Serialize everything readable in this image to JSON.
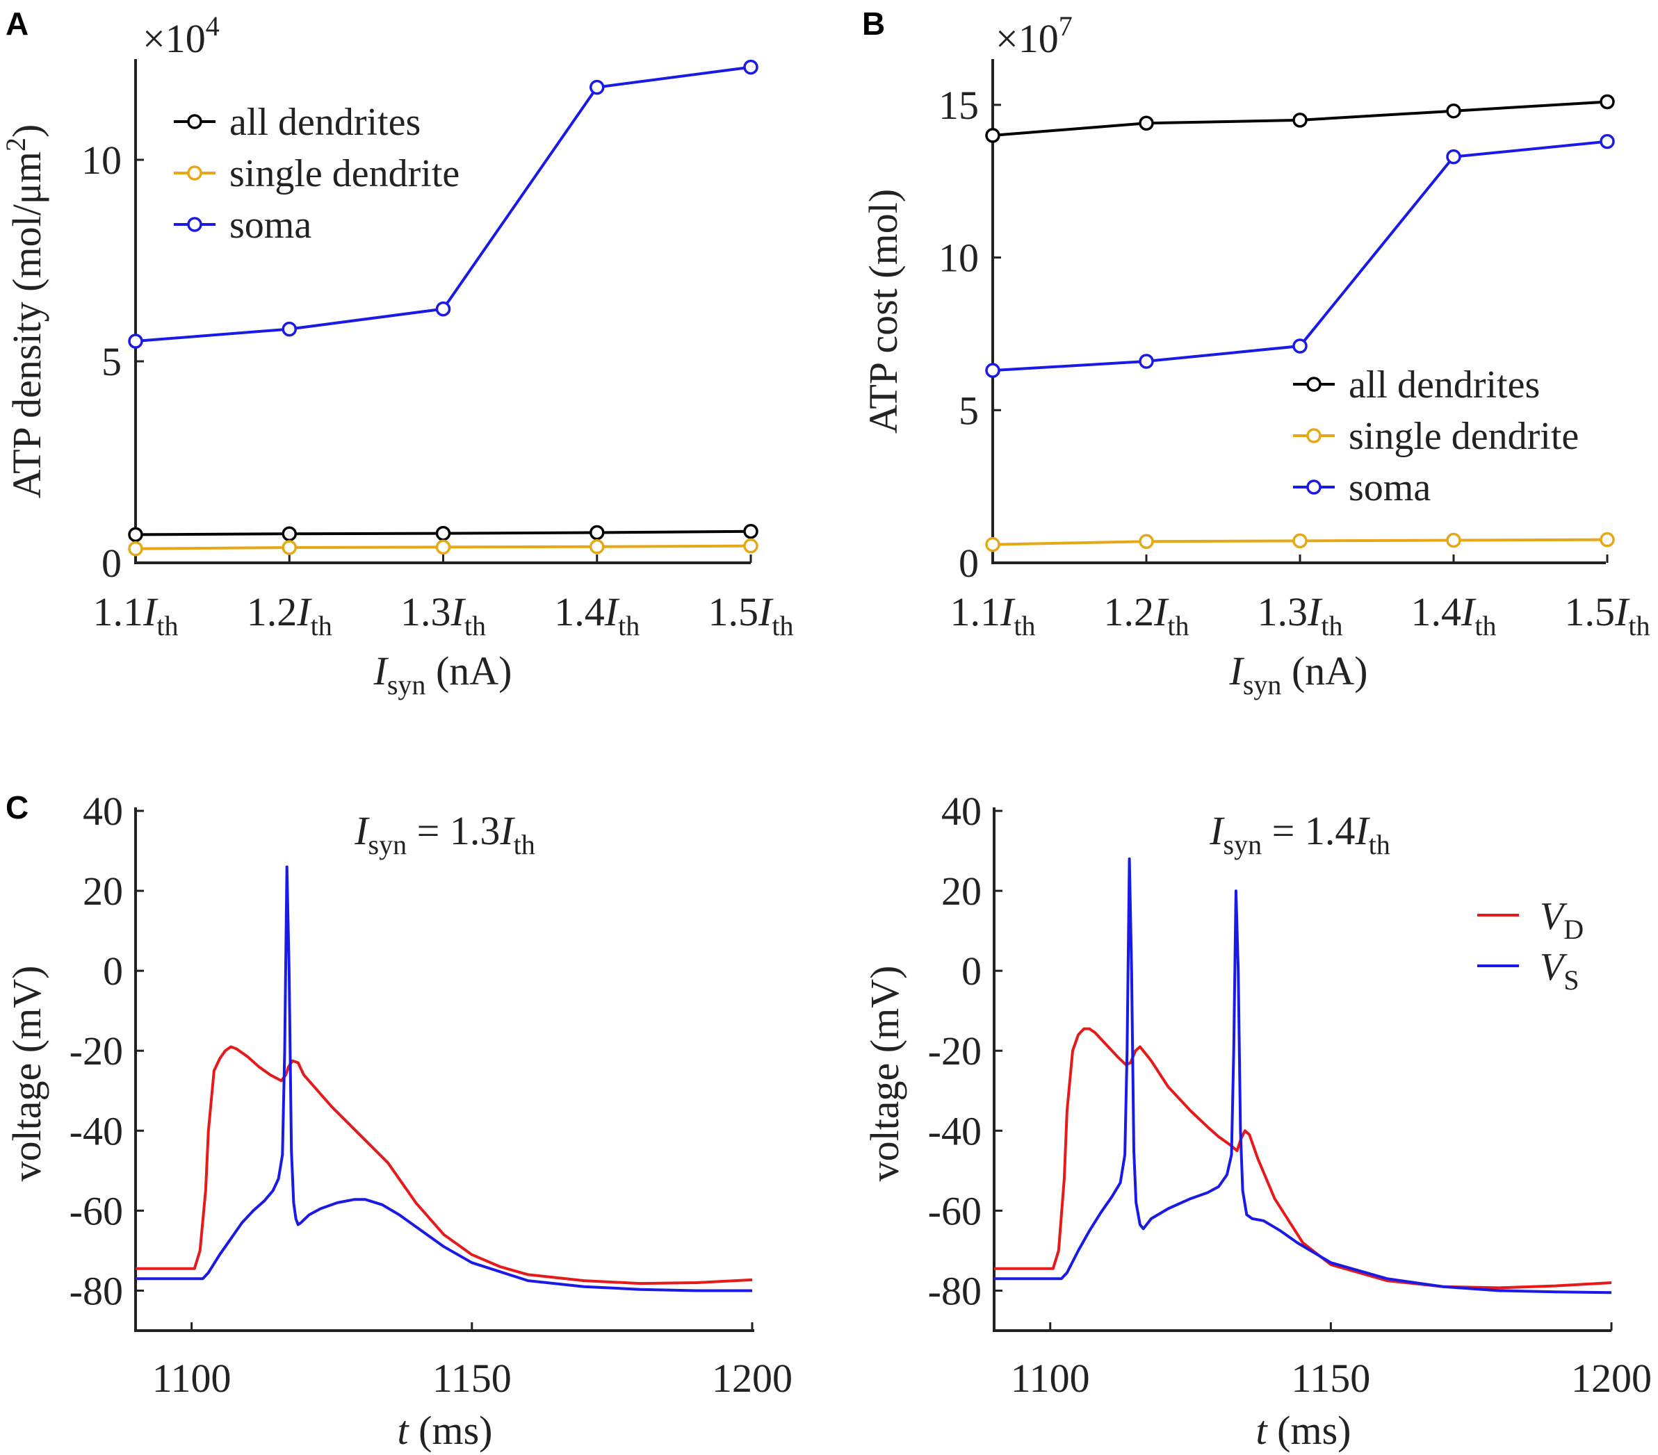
{
  "panels": {
    "a": "A",
    "b": "B",
    "c": "C"
  },
  "chart_data": [
    {
      "type": "line",
      "panel": "A",
      "multiplier": "×10",
      "exponent": "4",
      "ylabel_main": "ATP density (mol/μm",
      "ylabel_sup": "2",
      "ylabel_close": ")",
      "xlabel_var": "I",
      "xlabel_sub": "syn",
      "xlabel_unit": " (nA)",
      "ylim": [
        0,
        12.5
      ],
      "yticks": [
        "0",
        "5",
        "10"
      ],
      "categories": [
        "1.1",
        "1.2",
        "1.3",
        "1.4",
        "1.5"
      ],
      "cat_var": "I",
      "cat_sub": "th",
      "legend_position": "upper-left",
      "series": [
        {
          "name": "all dendrites",
          "color": "#000000",
          "values": [
            0.7,
            0.72,
            0.73,
            0.75,
            0.78
          ]
        },
        {
          "name": "single dendrite",
          "color": "#e6a817",
          "values": [
            0.35,
            0.38,
            0.39,
            0.4,
            0.42
          ]
        },
        {
          "name": "soma",
          "color": "#1a1ae6",
          "values": [
            5.5,
            5.8,
            6.3,
            11.8,
            12.3
          ]
        }
      ]
    },
    {
      "type": "line",
      "panel": "B",
      "multiplier": "×10",
      "exponent": "7",
      "ylabel": "ATP cost (mol)",
      "xlabel_var": "I",
      "xlabel_sub": "syn",
      "xlabel_unit": " (nA)",
      "ylim": [
        0,
        16.5
      ],
      "yticks": [
        "0",
        "5",
        "10",
        "15"
      ],
      "categories": [
        "1.1",
        "1.2",
        "1.3",
        "1.4",
        "1.5"
      ],
      "cat_var": "I",
      "cat_sub": "th",
      "legend_position": "lower-right",
      "series": [
        {
          "name": "all dendrites",
          "color": "#000000",
          "values": [
            14.0,
            14.4,
            14.5,
            14.8,
            15.1
          ]
        },
        {
          "name": "single dendrite",
          "color": "#e6a817",
          "values": [
            0.6,
            0.7,
            0.72,
            0.74,
            0.76
          ]
        },
        {
          "name": "soma",
          "color": "#1a1ae6",
          "values": [
            6.3,
            6.6,
            7.1,
            13.3,
            13.8
          ]
        }
      ]
    },
    {
      "type": "line",
      "panel": "C-left",
      "title_var": "I",
      "title_sub": "syn",
      "title_eq": " = 1.3",
      "title_var2": "I",
      "title_sub2": "th",
      "ylabel": "voltage (mV)",
      "xlabel_var": "t",
      "xlabel_unit": " (ms)",
      "xlim": [
        1090,
        1200
      ],
      "ylim": [
        -90,
        40
      ],
      "xticks": [
        "1100",
        "1150",
        "1200"
      ],
      "yticks": [
        "40",
        "20",
        "0",
        "-20",
        "-40",
        "-60",
        "-80"
      ],
      "series": [
        {
          "name": "V_D",
          "color": "#e61a1a",
          "x": [
            1090,
            1100.5,
            1101.5,
            1102.5,
            1103,
            1104,
            1105,
            1106,
            1107,
            1108,
            1110,
            1112,
            1114,
            1116,
            1116.8,
            1117.3,
            1118,
            1119,
            1120,
            1125,
            1130,
            1135,
            1140,
            1145,
            1150,
            1155,
            1160,
            1170,
            1180,
            1190,
            1200
          ],
          "y": [
            -74.5,
            -74.5,
            -70,
            -55,
            -40,
            -25,
            -22,
            -20,
            -19,
            -19.5,
            -21.5,
            -24,
            -26,
            -27.5,
            -26,
            -24,
            -22.5,
            -23,
            -26,
            -34,
            -41,
            -48,
            -58,
            -66,
            -71,
            -74,
            -76,
            -77.5,
            -78.2,
            -78,
            -77.3
          ]
        },
        {
          "name": "V_S",
          "color": "#1a1ae6",
          "x": [
            1090,
            1102,
            1103,
            1105,
            1107,
            1109,
            1111,
            1113,
            1114.5,
            1115.5,
            1116.2,
            1116.6,
            1117,
            1117.4,
            1117.8,
            1118.2,
            1118.6,
            1119,
            1119.5,
            1121,
            1123,
            1126,
            1129,
            1131,
            1134,
            1137,
            1140,
            1145,
            1150,
            1160,
            1170,
            1180,
            1190,
            1200
          ],
          "y": [
            -77,
            -77,
            -75.5,
            -71,
            -67,
            -63,
            -60,
            -57.5,
            -55,
            -52,
            -46,
            -20,
            26,
            0,
            -45,
            -58,
            -62,
            -63.5,
            -63,
            -61,
            -59.5,
            -58,
            -57.2,
            -57.2,
            -58.5,
            -61,
            -64,
            -69,
            -73,
            -77.5,
            -79,
            -79.7,
            -80,
            -80
          ]
        },
        {
          "name": "",
          "color": "#ffffff",
          "x": [],
          "y": []
        }
      ]
    },
    {
      "type": "line",
      "panel": "C-right",
      "title_var": "I",
      "title_sub": "syn",
      "title_eq": " = 1.4",
      "title_var2": "I",
      "title_sub2": "th",
      "ylabel": "voltage (mV)",
      "xlabel_var": "t",
      "xlabel_unit": " (ms)",
      "xlim": [
        1090,
        1200
      ],
      "ylim": [
        -90,
        40
      ],
      "xticks": [
        "1100",
        "1150",
        "1200"
      ],
      "yticks": [
        "40",
        "20",
        "0",
        "-20",
        "-40",
        "-60",
        "-80"
      ],
      "legend_position": "upper-right",
      "legend": [
        {
          "var": "V",
          "sub": "D",
          "color": "#e61a1a"
        },
        {
          "var": "V",
          "sub": "S",
          "color": "#1a1ae6"
        }
      ],
      "series": [
        {
          "name": "V_D",
          "color": "#e61a1a",
          "x": [
            1090,
            1100.5,
            1101.5,
            1102.5,
            1103,
            1104,
            1105,
            1106,
            1107,
            1108,
            1110,
            1112,
            1113.5,
            1114.3,
            1115.2,
            1116,
            1118,
            1121,
            1125,
            1128,
            1130,
            1132,
            1133.3,
            1134,
            1134.7,
            1135.5,
            1137,
            1140,
            1145,
            1150,
            1160,
            1170,
            1180,
            1190,
            1200
          ],
          "y": [
            -74.5,
            -74.5,
            -70,
            -52,
            -35,
            -20,
            -16,
            -14.5,
            -14.5,
            -15.5,
            -18.5,
            -21.5,
            -23.5,
            -23,
            -20,
            -19,
            -22.5,
            -29,
            -35,
            -39,
            -41.5,
            -43.5,
            -45,
            -42,
            -40,
            -41,
            -47,
            -57,
            -68,
            -73.5,
            -77.5,
            -79,
            -79.3,
            -78.8,
            -78
          ]
        },
        {
          "name": "V_S",
          "color": "#1a1ae6",
          "x": [
            1090,
            1102,
            1103,
            1105,
            1107,
            1109,
            1111,
            1112.5,
            1113.3,
            1113.7,
            1114.1,
            1114.5,
            1114.9,
            1115.3,
            1116,
            1116.6,
            1118,
            1121,
            1125,
            1128,
            1130,
            1131.5,
            1132.3,
            1132.7,
            1133.1,
            1133.5,
            1133.9,
            1134.3,
            1135,
            1136,
            1138,
            1141,
            1144,
            1150,
            1160,
            1170,
            1180,
            1190,
            1200
          ],
          "y": [
            -77,
            -77,
            -75.5,
            -70,
            -65,
            -60.5,
            -56.5,
            -53,
            -46,
            -20,
            28,
            0,
            -45,
            -58,
            -63.5,
            -64.5,
            -62,
            -59.5,
            -57,
            -55.5,
            -54,
            -51,
            -46,
            -20,
            20,
            0,
            -40,
            -55,
            -61,
            -62,
            -62.5,
            -65,
            -68,
            -73,
            -77,
            -79,
            -80,
            -80.3,
            -80.5
          ]
        }
      ]
    }
  ]
}
